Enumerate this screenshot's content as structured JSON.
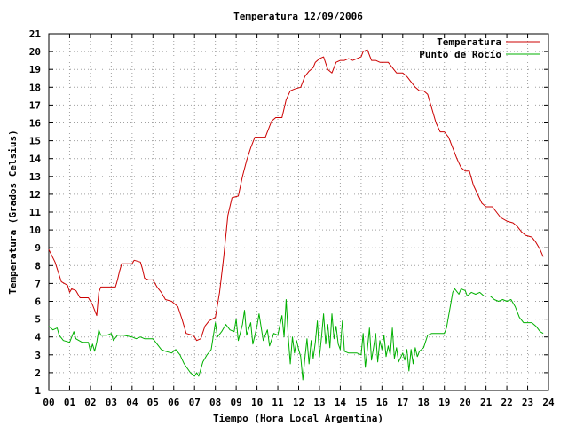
{
  "chart_data": {
    "type": "line",
    "title": "Temperatura 12/09/2006",
    "xlabel": "Tiempo (Hora Local Argentina)",
    "ylabel": "Temperatura (Grados Celsius)",
    "xlim": [
      0,
      24
    ],
    "ylim": [
      1,
      21
    ],
    "x_tick_labels": [
      "00",
      "01",
      "02",
      "03",
      "04",
      "05",
      "06",
      "07",
      "08",
      "09",
      "10",
      "11",
      "12",
      "13",
      "14",
      "15",
      "16",
      "17",
      "18",
      "19",
      "20",
      "21",
      "22",
      "23",
      "24"
    ],
    "y_tick_labels": [
      "1",
      "2",
      "3",
      "4",
      "5",
      "6",
      "7",
      "8",
      "9",
      "10",
      "11",
      "12",
      "13",
      "14",
      "15",
      "16",
      "17",
      "18",
      "19",
      "20",
      "21"
    ],
    "grid": true,
    "legend_position": "top-right",
    "series": [
      {
        "name": "Temperatura",
        "color": "#cc0000",
        "points": [
          [
            0.0,
            8.9
          ],
          [
            0.3,
            8.2
          ],
          [
            0.6,
            7.1
          ],
          [
            0.9,
            6.9
          ],
          [
            1.0,
            6.5
          ],
          [
            1.1,
            6.7
          ],
          [
            1.3,
            6.6
          ],
          [
            1.5,
            6.2
          ],
          [
            1.9,
            6.2
          ],
          [
            2.1,
            5.8
          ],
          [
            2.3,
            5.2
          ],
          [
            2.4,
            6.5
          ],
          [
            2.5,
            6.8
          ],
          [
            2.8,
            6.8
          ],
          [
            3.2,
            6.8
          ],
          [
            3.3,
            7.2
          ],
          [
            3.4,
            7.7
          ],
          [
            3.5,
            8.1
          ],
          [
            3.8,
            8.1
          ],
          [
            4.0,
            8.1
          ],
          [
            4.1,
            8.3
          ],
          [
            4.4,
            8.2
          ],
          [
            4.5,
            7.8
          ],
          [
            4.6,
            7.3
          ],
          [
            4.8,
            7.2
          ],
          [
            5.0,
            7.2
          ],
          [
            5.2,
            6.8
          ],
          [
            5.4,
            6.5
          ],
          [
            5.6,
            6.1
          ],
          [
            5.9,
            6.0
          ],
          [
            6.2,
            5.7
          ],
          [
            6.4,
            5.0
          ],
          [
            6.6,
            4.2
          ],
          [
            6.9,
            4.1
          ],
          [
            7.0,
            4.0
          ],
          [
            7.1,
            3.8
          ],
          [
            7.3,
            3.9
          ],
          [
            7.5,
            4.6
          ],
          [
            7.7,
            4.9
          ],
          [
            8.0,
            5.1
          ],
          [
            8.2,
            6.5
          ],
          [
            8.4,
            8.5
          ],
          [
            8.6,
            10.8
          ],
          [
            8.8,
            11.8
          ],
          [
            9.1,
            11.9
          ],
          [
            9.3,
            13.0
          ],
          [
            9.5,
            13.9
          ],
          [
            9.7,
            14.6
          ],
          [
            9.9,
            15.2
          ],
          [
            10.1,
            15.2
          ],
          [
            10.4,
            15.2
          ],
          [
            10.5,
            15.5
          ],
          [
            10.7,
            16.1
          ],
          [
            10.9,
            16.3
          ],
          [
            11.2,
            16.3
          ],
          [
            11.3,
            16.8
          ],
          [
            11.4,
            17.3
          ],
          [
            11.6,
            17.8
          ],
          [
            11.8,
            17.9
          ],
          [
            12.1,
            18.0
          ],
          [
            12.3,
            18.6
          ],
          [
            12.5,
            18.9
          ],
          [
            12.7,
            19.1
          ],
          [
            12.8,
            19.4
          ],
          [
            13.0,
            19.6
          ],
          [
            13.2,
            19.7
          ],
          [
            13.4,
            19.0
          ],
          [
            13.6,
            18.8
          ],
          [
            13.8,
            19.4
          ],
          [
            14.0,
            19.5
          ],
          [
            14.2,
            19.5
          ],
          [
            14.4,
            19.6
          ],
          [
            14.6,
            19.5
          ],
          [
            14.8,
            19.6
          ],
          [
            15.0,
            19.7
          ],
          [
            15.1,
            20.0
          ],
          [
            15.3,
            20.1
          ],
          [
            15.5,
            19.5
          ],
          [
            15.7,
            19.5
          ],
          [
            15.9,
            19.4
          ],
          [
            16.1,
            19.4
          ],
          [
            16.3,
            19.4
          ],
          [
            16.5,
            19.1
          ],
          [
            16.7,
            18.8
          ],
          [
            17.0,
            18.8
          ],
          [
            17.2,
            18.6
          ],
          [
            17.4,
            18.3
          ],
          [
            17.6,
            18.0
          ],
          [
            17.8,
            17.8
          ],
          [
            18.0,
            17.8
          ],
          [
            18.2,
            17.6
          ],
          [
            18.4,
            16.8
          ],
          [
            18.6,
            16.0
          ],
          [
            18.8,
            15.5
          ],
          [
            19.0,
            15.5
          ],
          [
            19.2,
            15.2
          ],
          [
            19.4,
            14.6
          ],
          [
            19.6,
            14.0
          ],
          [
            19.8,
            13.5
          ],
          [
            20.0,
            13.3
          ],
          [
            20.2,
            13.3
          ],
          [
            20.4,
            12.5
          ],
          [
            20.6,
            12.0
          ],
          [
            20.8,
            11.5
          ],
          [
            21.0,
            11.3
          ],
          [
            21.3,
            11.3
          ],
          [
            21.5,
            11.0
          ],
          [
            21.7,
            10.7
          ],
          [
            22.0,
            10.5
          ],
          [
            22.3,
            10.4
          ],
          [
            22.5,
            10.2
          ],
          [
            22.7,
            9.9
          ],
          [
            22.9,
            9.7
          ],
          [
            23.2,
            9.6
          ],
          [
            23.4,
            9.3
          ],
          [
            23.6,
            8.9
          ],
          [
            23.75,
            8.5
          ]
        ]
      },
      {
        "name": "Punto de Rocío",
        "color": "#00b000",
        "points": [
          [
            0.0,
            4.6
          ],
          [
            0.2,
            4.4
          ],
          [
            0.4,
            4.5
          ],
          [
            0.5,
            4.1
          ],
          [
            0.7,
            3.8
          ],
          [
            1.0,
            3.7
          ],
          [
            1.2,
            4.3
          ],
          [
            1.3,
            3.9
          ],
          [
            1.6,
            3.7
          ],
          [
            1.9,
            3.7
          ],
          [
            2.0,
            3.2
          ],
          [
            2.1,
            3.6
          ],
          [
            2.2,
            3.2
          ],
          [
            2.3,
            3.7
          ],
          [
            2.4,
            4.4
          ],
          [
            2.5,
            4.1
          ],
          [
            2.8,
            4.1
          ],
          [
            3.0,
            4.2
          ],
          [
            3.1,
            3.8
          ],
          [
            3.3,
            4.1
          ],
          [
            3.6,
            4.1
          ],
          [
            4.0,
            4.0
          ],
          [
            4.2,
            3.9
          ],
          [
            4.4,
            4.0
          ],
          [
            4.6,
            3.9
          ],
          [
            5.0,
            3.9
          ],
          [
            5.2,
            3.6
          ],
          [
            5.4,
            3.3
          ],
          [
            5.6,
            3.2
          ],
          [
            5.9,
            3.1
          ],
          [
            6.1,
            3.3
          ],
          [
            6.3,
            3.0
          ],
          [
            6.5,
            2.5
          ],
          [
            6.8,
            2.0
          ],
          [
            7.0,
            1.8
          ],
          [
            7.1,
            2.0
          ],
          [
            7.2,
            1.8
          ],
          [
            7.4,
            2.6
          ],
          [
            7.6,
            3.0
          ],
          [
            7.8,
            3.3
          ],
          [
            8.0,
            4.8
          ],
          [
            8.1,
            4.0
          ],
          [
            8.3,
            4.3
          ],
          [
            8.5,
            4.7
          ],
          [
            8.7,
            4.4
          ],
          [
            8.9,
            4.3
          ],
          [
            9.0,
            5.0
          ],
          [
            9.1,
            3.8
          ],
          [
            9.3,
            4.7
          ],
          [
            9.4,
            5.5
          ],
          [
            9.5,
            4.1
          ],
          [
            9.7,
            4.8
          ],
          [
            9.8,
            3.6
          ],
          [
            10.0,
            4.6
          ],
          [
            10.1,
            5.3
          ],
          [
            10.3,
            3.8
          ],
          [
            10.5,
            4.4
          ],
          [
            10.6,
            3.5
          ],
          [
            10.8,
            4.2
          ],
          [
            11.0,
            4.1
          ],
          [
            11.2,
            5.2
          ],
          [
            11.3,
            4.0
          ],
          [
            11.4,
            6.1
          ],
          [
            11.5,
            4.0
          ],
          [
            11.6,
            2.5
          ],
          [
            11.7,
            4.0
          ],
          [
            11.8,
            3.1
          ],
          [
            11.9,
            3.8
          ],
          [
            12.0,
            3.3
          ],
          [
            12.1,
            2.9
          ],
          [
            12.2,
            1.6
          ],
          [
            12.3,
            2.8
          ],
          [
            12.4,
            3.9
          ],
          [
            12.5,
            2.5
          ],
          [
            12.6,
            3.8
          ],
          [
            12.7,
            2.8
          ],
          [
            12.8,
            3.7
          ],
          [
            12.9,
            4.9
          ],
          [
            13.0,
            2.9
          ],
          [
            13.1,
            4.0
          ],
          [
            13.2,
            5.3
          ],
          [
            13.3,
            3.6
          ],
          [
            13.4,
            4.7
          ],
          [
            13.5,
            3.4
          ],
          [
            13.6,
            5.3
          ],
          [
            13.7,
            3.9
          ],
          [
            13.8,
            4.6
          ],
          [
            13.9,
            3.6
          ],
          [
            14.0,
            3.3
          ],
          [
            14.1,
            4.9
          ],
          [
            14.2,
            3.2
          ],
          [
            14.4,
            3.1
          ],
          [
            14.6,
            3.1
          ],
          [
            14.8,
            3.1
          ],
          [
            15.0,
            3.0
          ],
          [
            15.1,
            4.2
          ],
          [
            15.2,
            2.3
          ],
          [
            15.3,
            3.3
          ],
          [
            15.4,
            4.5
          ],
          [
            15.5,
            2.7
          ],
          [
            15.6,
            3.4
          ],
          [
            15.7,
            4.2
          ],
          [
            15.8,
            2.6
          ],
          [
            15.9,
            3.8
          ],
          [
            16.0,
            3.3
          ],
          [
            16.1,
            4.1
          ],
          [
            16.2,
            2.9
          ],
          [
            16.3,
            3.5
          ],
          [
            16.4,
            3.0
          ],
          [
            16.5,
            4.5
          ],
          [
            16.6,
            2.8
          ],
          [
            16.7,
            3.4
          ],
          [
            16.8,
            2.6
          ],
          [
            17.0,
            3.1
          ],
          [
            17.1,
            2.7
          ],
          [
            17.2,
            3.3
          ],
          [
            17.3,
            2.1
          ],
          [
            17.4,
            3.3
          ],
          [
            17.5,
            2.5
          ],
          [
            17.6,
            3.4
          ],
          [
            17.7,
            2.9
          ],
          [
            17.8,
            3.2
          ],
          [
            18.0,
            3.4
          ],
          [
            18.2,
            4.1
          ],
          [
            18.4,
            4.2
          ],
          [
            18.7,
            4.2
          ],
          [
            19.0,
            4.2
          ],
          [
            19.1,
            4.5
          ],
          [
            19.3,
            5.8
          ],
          [
            19.4,
            6.5
          ],
          [
            19.5,
            6.7
          ],
          [
            19.7,
            6.4
          ],
          [
            19.8,
            6.7
          ],
          [
            20.0,
            6.6
          ],
          [
            20.1,
            6.3
          ],
          [
            20.3,
            6.5
          ],
          [
            20.5,
            6.4
          ],
          [
            20.7,
            6.5
          ],
          [
            20.9,
            6.3
          ],
          [
            21.2,
            6.3
          ],
          [
            21.4,
            6.1
          ],
          [
            21.6,
            6.0
          ],
          [
            21.8,
            6.1
          ],
          [
            22.0,
            6.0
          ],
          [
            22.2,
            6.1
          ],
          [
            22.4,
            5.7
          ],
          [
            22.6,
            5.1
          ],
          [
            22.8,
            4.8
          ],
          [
            23.0,
            4.8
          ],
          [
            23.2,
            4.8
          ],
          [
            23.4,
            4.6
          ],
          [
            23.6,
            4.3
          ],
          [
            23.75,
            4.2
          ]
        ]
      }
    ]
  }
}
